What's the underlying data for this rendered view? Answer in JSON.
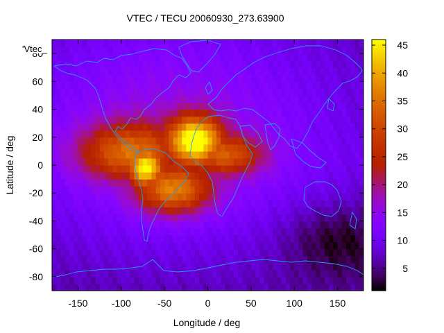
{
  "chart_data": {
    "type": "heatmap",
    "title": "VTEC / TECU 20060930_273.63900",
    "xlabel": "Longitude / deg",
    "ylabel": "Latitude / deg",
    "key_label": "'Vtec_",
    "xlim": [
      -180,
      180
    ],
    "ylim": [
      -90,
      90
    ],
    "x_ticks": [
      -150,
      -100,
      -50,
      0,
      50,
      100,
      150
    ],
    "y_ticks": [
      -80,
      -60,
      -40,
      -20,
      0,
      20,
      40,
      60,
      80
    ],
    "colorbar": {
      "range": [
        1,
        46
      ],
      "ticks": [
        5,
        10,
        15,
        20,
        25,
        30,
        35,
        40,
        45
      ],
      "palette": "black-purple-red-orange-yellow"
    },
    "field": {
      "background": [
        {
          "lon_center": -40,
          "lat_center": 25,
          "lon_width": 170,
          "lat_width": 95,
          "amplitude": 9
        },
        {
          "lon_center": 150,
          "lat_center": -55,
          "lon_width": 60,
          "lat_width": 25,
          "amplitude": -7
        }
      ],
      "base_vtec": 8,
      "latitude_falloff": [
        {
          "lat": -90,
          "factor": 0.7
        },
        {
          "lat": 90,
          "factor": 0.85
        }
      ],
      "enhancements": [
        {
          "lon": -15,
          "lat": 18,
          "lon_sigma": 22,
          "lat_sigma": 12,
          "peak": 44
        },
        {
          "lon": -72,
          "lat": -2,
          "lon_sigma": 14,
          "lat_sigma": 10,
          "peak": 40
        },
        {
          "lon": -40,
          "lat": -18,
          "lon_sigma": 30,
          "lat_sigma": 12,
          "peak": 32
        },
        {
          "lon": -90,
          "lat": 10,
          "lon_sigma": 40,
          "lat_sigma": 14,
          "peak": 28
        },
        {
          "lon": 20,
          "lat": 8,
          "lon_sigma": 30,
          "lat_sigma": 10,
          "peak": 26
        }
      ]
    },
    "overlay": "coastlines"
  }
}
